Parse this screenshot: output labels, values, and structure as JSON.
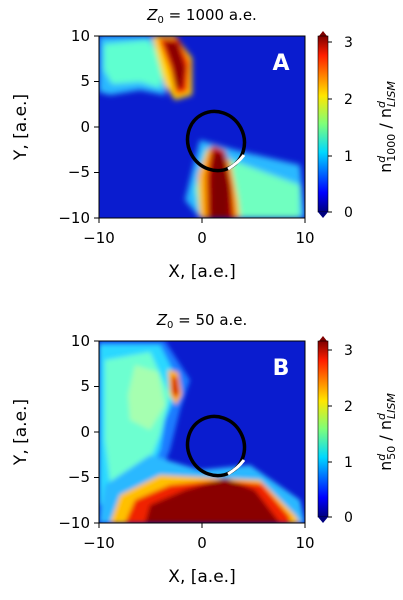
{
  "chart_data": [
    {
      "type": "heatmap",
      "panel_label": "A",
      "title": "Z₀ = 1000 a.e.",
      "title_var": "Z",
      "title_sub": "0",
      "title_rest": " = 1000 a.e.",
      "xlabel": "X, [a.e.]",
      "ylabel": "Y, [a.e.]",
      "xlim": [
        -10,
        10
      ],
      "ylim": [
        -10,
        10
      ],
      "xticks": [
        -10,
        0,
        10
      ],
      "yticks": [
        10,
        5,
        0,
        -5,
        -10
      ],
      "colorbar": {
        "label_main": "n",
        "label_sup": "d",
        "label_sub": "1000",
        "label_sep": " / n",
        "label_sup2": "d",
        "label_sub2": "LISM",
        "range": [
          0,
          3
        ],
        "ticks": [
          3,
          2,
          1,
          0
        ],
        "extend": "both"
      },
      "orbit": {
        "center": [
          1.5,
          -2.5
        ],
        "rx": 2.2,
        "ry": 3.0,
        "rotation_deg": -28
      }
    },
    {
      "type": "heatmap",
      "panel_label": "B",
      "title": "Z₀ = 50 a.e.",
      "title_var": "Z",
      "title_sub": "0",
      "title_rest": " = 50 a.e.",
      "xlabel": "X, [a.e.]",
      "ylabel": "Y, [a.e.]",
      "xlim": [
        -10,
        10
      ],
      "ylim": [
        -10,
        10
      ],
      "xticks": [
        -10,
        0,
        10
      ],
      "yticks": [
        10,
        5,
        0,
        -5,
        -10
      ],
      "colorbar": {
        "label_main": "n",
        "label_sup": "d",
        "label_sub": "50",
        "label_sep": " / n",
        "label_sup2": "d",
        "label_sub2": "LISM",
        "range": [
          0,
          3
        ],
        "ticks": [
          3,
          2,
          1,
          0
        ],
        "extend": "both"
      },
      "orbit": {
        "center": [
          1.5,
          -2.5
        ],
        "rx": 2.2,
        "ry": 3.0,
        "rotation_deg": -28
      }
    }
  ],
  "colormap": "jet"
}
